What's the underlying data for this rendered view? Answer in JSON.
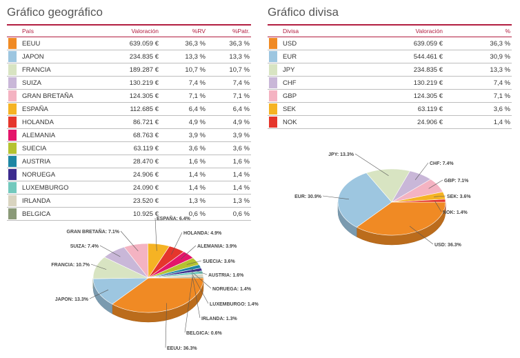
{
  "geo": {
    "title": "Gráfico geográfico",
    "headers": {
      "pais": "País",
      "valoracion": "Valoración",
      "rv": "%RV",
      "patr": "%Patr."
    },
    "rows": [
      {
        "name": "EEUU",
        "valoracion": "639.059 €",
        "rv": "36,3 %",
        "patr": "36,3 %",
        "color": "#f08a24"
      },
      {
        "name": "JAPON",
        "valoracion": "234.835 €",
        "rv": "13,3 %",
        "patr": "13,3 %",
        "color": "#9dc6e0"
      },
      {
        "name": "FRANCIA",
        "valoracion": "189.287 €",
        "rv": "10,7 %",
        "patr": "10,7 %",
        "color": "#d8e4c2"
      },
      {
        "name": "SUIZA",
        "valoracion": "130.219 €",
        "rv": "7,4 %",
        "patr": "7,4 %",
        "color": "#c9b7d8"
      },
      {
        "name": "GRAN BRETAÑA",
        "valoracion": "124.305 €",
        "rv": "7,1 %",
        "patr": "7,1 %",
        "color": "#f4b3c2"
      },
      {
        "name": "ESPAÑA",
        "valoracion": "112.685 €",
        "rv": "6,4 %",
        "patr": "6,4 %",
        "color": "#f5b324"
      },
      {
        "name": "HOLANDA",
        "valoracion": "86.721 €",
        "rv": "4,9 %",
        "patr": "4,9 %",
        "color": "#e5362c"
      },
      {
        "name": "ALEMANIA",
        "valoracion": "68.763 €",
        "rv": "3,9 %",
        "patr": "3,9 %",
        "color": "#e4156a"
      },
      {
        "name": "SUECIA",
        "valoracion": "63.119 €",
        "rv": "3,6 %",
        "patr": "3,6 %",
        "color": "#b5c230"
      },
      {
        "name": "AUSTRIA",
        "valoracion": "28.470 €",
        "rv": "1,6 %",
        "patr": "1,6 %",
        "color": "#1d86a3"
      },
      {
        "name": "NORUEGA",
        "valoracion": "24.906 €",
        "rv": "1,4 %",
        "patr": "1,4 %",
        "color": "#3c2b8e"
      },
      {
        "name": "LUXEMBURGO",
        "valoracion": "24.090 €",
        "rv": "1,4 %",
        "patr": "1,4 %",
        "color": "#73c9bd"
      },
      {
        "name": "IRLANDA",
        "valoracion": "23.520 €",
        "rv": "1,3 %",
        "patr": "1,3 %",
        "color": "#d9d4c0"
      },
      {
        "name": "BELGICA",
        "valoracion": "10.925 €",
        "rv": "0,6 %",
        "patr": "0,6 %",
        "color": "#8a9a78"
      }
    ]
  },
  "div": {
    "title": "Gráfico divisa",
    "headers": {
      "divisa": "Divisa",
      "valoracion": "Valoración",
      "pct": "%"
    },
    "rows": [
      {
        "name": "USD",
        "valoracion": "639.059 €",
        "pct": "36,3 %",
        "color": "#f08a24"
      },
      {
        "name": "EUR",
        "valoracion": "544.461 €",
        "pct": "30,9 %",
        "color": "#9dc6e0"
      },
      {
        "name": "JPY",
        "valoracion": "234.835 €",
        "pct": "13,3 %",
        "color": "#d8e4c2"
      },
      {
        "name": "CHF",
        "valoracion": "130.219 €",
        "pct": "7,4 %",
        "color": "#c9b7d8"
      },
      {
        "name": "GBP",
        "valoracion": "124.305 €",
        "pct": "7,1 %",
        "color": "#f4b3c2"
      },
      {
        "name": "SEK",
        "valoracion": "63.119 €",
        "pct": "3,6 %",
        "color": "#f5b324"
      },
      {
        "name": "NOK",
        "valoracion": "24.906 €",
        "pct": "1,4 %",
        "color": "#e5362c"
      }
    ]
  },
  "chart_data": [
    {
      "type": "pie",
      "slices": [
        {
          "label": "EEUU: 36.3%",
          "value": 36.3,
          "color": "#f08a24"
        },
        {
          "label": "JAPON: 13.3%",
          "value": 13.3,
          "color": "#9dc6e0"
        },
        {
          "label": "FRANCIA: 10.7%",
          "value": 10.7,
          "color": "#d8e4c2"
        },
        {
          "label": "SUIZA: 7.4%",
          "value": 7.4,
          "color": "#c9b7d8"
        },
        {
          "label": "GRAN BRETAÑA: 7.1%",
          "value": 7.1,
          "color": "#f4b3c2"
        },
        {
          "label": "ESPAÑA: 6.4%",
          "value": 6.4,
          "color": "#f5b324"
        },
        {
          "label": "HOLANDA: 4.9%",
          "value": 4.9,
          "color": "#e5362c"
        },
        {
          "label": "ALEMANIA: 3.9%",
          "value": 3.9,
          "color": "#e4156a"
        },
        {
          "label": "SUECIA: 3.6%",
          "value": 3.6,
          "color": "#b5c230"
        },
        {
          "label": "AUSTRIA: 1.6%",
          "value": 1.6,
          "color": "#1d86a3"
        },
        {
          "label": "NORUEGA: 1.4%",
          "value": 1.4,
          "color": "#3c2b8e"
        },
        {
          "label": "LUXEMBURGO: 1.4%",
          "value": 1.4,
          "color": "#73c9bd"
        },
        {
          "label": "IRLANDA: 1.3%",
          "value": 1.3,
          "color": "#d9d4c0"
        },
        {
          "label": "BELGICA: 0.6%",
          "value": 0.6,
          "color": "#8a9a78"
        }
      ]
    },
    {
      "type": "pie",
      "slices": [
        {
          "label": "USD: 36.3%",
          "value": 36.3,
          "color": "#f08a24"
        },
        {
          "label": "EUR: 30.9%",
          "value": 30.9,
          "color": "#9dc6e0"
        },
        {
          "label": "JPY: 13.3%",
          "value": 13.3,
          "color": "#d8e4c2"
        },
        {
          "label": "CHF: 7.4%",
          "value": 7.4,
          "color": "#c9b7d8"
        },
        {
          "label": "GBP: 7.1%",
          "value": 7.1,
          "color": "#f4b3c2"
        },
        {
          "label": "SEK: 3.6%",
          "value": 3.6,
          "color": "#f5b324"
        },
        {
          "label": "NOK: 1.4%",
          "value": 1.4,
          "color": "#e5362c"
        }
      ]
    }
  ]
}
